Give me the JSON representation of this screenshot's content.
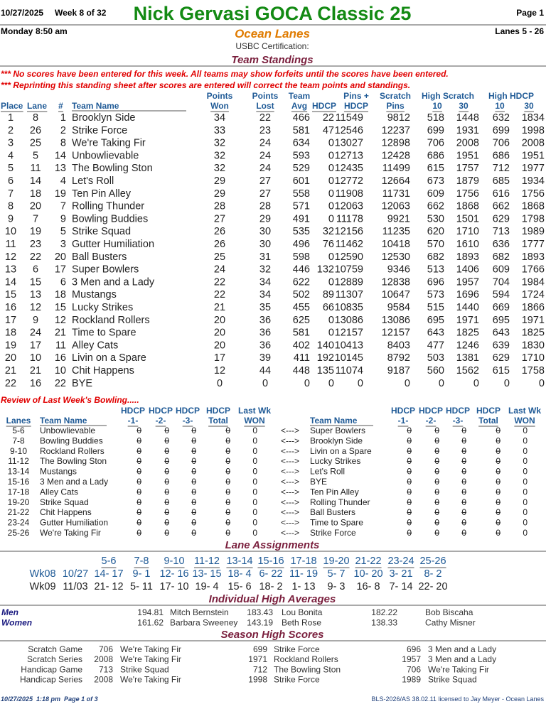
{
  "header": {
    "date": "10/27/2025",
    "week": "Week 8 of 32",
    "title": "Nick Gervasi GOCA Classic 25",
    "page": "Page 1",
    "day": "Monday",
    "time": "8:50 am",
    "center": "Ocean Lanes",
    "lanes": "Lanes 5 - 26",
    "certification": "USBC Certification:"
  },
  "standings": {
    "title": "Team Standings",
    "notes": [
      "*** No scores have been entered for this week. All teams may show forfeits until the scores have been entered.",
      "*** Reprinting this standing sheet after scores are entered will correct the team points and standings."
    ],
    "header_top": [
      "Points",
      "Points",
      "Team",
      "Pins +",
      "Scratch",
      "High Scratch",
      "High HDCP"
    ],
    "header": [
      "Place",
      "Lane",
      "#",
      "Team Name",
      "Won",
      "Lost",
      "Avg",
      "HDCP",
      "HDCP",
      "Pins",
      "10",
      "30",
      "10",
      "30"
    ],
    "rows": [
      [
        1,
        8,
        1,
        "Brooklyn Side",
        34,
        22,
        466,
        22,
        11549,
        9812,
        518,
        1448,
        632,
        1834
      ],
      [
        2,
        26,
        2,
        "Strike Force",
        33,
        23,
        581,
        47,
        12546,
        12237,
        699,
        1931,
        699,
        1998
      ],
      [
        3,
        25,
        8,
        "We're Taking Fir",
        32,
        24,
        634,
        0,
        13027,
        12898,
        706,
        2008,
        706,
        2008
      ],
      [
        4,
        5,
        14,
        "Unbowlievable",
        32,
        24,
        593,
        0,
        12713,
        12428,
        686,
        1951,
        686,
        1951
      ],
      [
        5,
        11,
        13,
        "The Bowling Ston",
        32,
        24,
        529,
        0,
        12435,
        11499,
        615,
        1757,
        712,
        1977
      ],
      [
        6,
        14,
        4,
        "Let's Roll",
        29,
        27,
        601,
        0,
        12772,
        12664,
        673,
        1879,
        685,
        1934
      ],
      [
        7,
        18,
        19,
        "Ten Pin Alley",
        29,
        27,
        558,
        0,
        11908,
        11731,
        609,
        1756,
        616,
        1756
      ],
      [
        8,
        20,
        7,
        "Rolling Thunder",
        28,
        28,
        571,
        0,
        12063,
        12063,
        662,
        1868,
        662,
        1868
      ],
      [
        9,
        7,
        9,
        "Bowling Buddies",
        27,
        29,
        491,
        0,
        11178,
        9921,
        530,
        1501,
        629,
        1798
      ],
      [
        10,
        19,
        5,
        "Strike Squad",
        26,
        30,
        535,
        32,
        12156,
        11235,
        620,
        1710,
        713,
        1989
      ],
      [
        11,
        23,
        3,
        "Gutter Humiliation",
        26,
        30,
        496,
        76,
        11462,
        10418,
        570,
        1610,
        636,
        1777
      ],
      [
        12,
        22,
        20,
        "Ball Busters",
        25,
        31,
        598,
        0,
        12590,
        12530,
        682,
        1893,
        682,
        1893
      ],
      [
        13,
        6,
        17,
        "Super Bowlers",
        24,
        32,
        446,
        132,
        10759,
        9346,
        513,
        1406,
        609,
        1766
      ],
      [
        14,
        15,
        6,
        "3 Men and a Lady",
        22,
        34,
        622,
        0,
        12889,
        12838,
        696,
        1957,
        704,
        1984
      ],
      [
        15,
        13,
        18,
        "Mustangs",
        22,
        34,
        502,
        89,
        11307,
        10647,
        573,
        1696,
        594,
        1724
      ],
      [
        16,
        12,
        15,
        "Lucky Strikes",
        21,
        35,
        455,
        66,
        10835,
        9584,
        515,
        1440,
        669,
        1866
      ],
      [
        17,
        9,
        12,
        "Rockland Rollers",
        20,
        36,
        625,
        0,
        13086,
        13086,
        695,
        1971,
        695,
        1971
      ],
      [
        18,
        24,
        21,
        "Time to Spare",
        20,
        36,
        581,
        0,
        12157,
        12157,
        643,
        1825,
        643,
        1825
      ],
      [
        19,
        17,
        11,
        "Alley Cats",
        20,
        36,
        402,
        140,
        10413,
        8403,
        477,
        1246,
        639,
        1830
      ],
      [
        20,
        10,
        16,
        "Livin on a Spare",
        17,
        39,
        411,
        192,
        10145,
        8792,
        503,
        1381,
        629,
        1710
      ],
      [
        21,
        21,
        10,
        "Chit Happens",
        12,
        44,
        448,
        135,
        11074,
        9187,
        560,
        1562,
        615,
        1758
      ],
      [
        22,
        16,
        22,
        "BYE",
        0,
        0,
        0,
        0,
        0,
        0,
        0,
        0,
        0,
        0
      ]
    ]
  },
  "review": {
    "title": "Review of Last Week's Bowling.....",
    "header_top": [
      "HDCP",
      "HDCP",
      "HDCP",
      "HDCP",
      "Last Wk",
      "HDCP",
      "HDCP",
      "HDCP",
      "HDCP",
      "Last Wk"
    ],
    "header": [
      "Lanes",
      "Team Name",
      "-1-",
      "-2-",
      "-3-",
      "Total",
      "WON",
      "Team Name",
      "-1-",
      "-2-",
      "-3-",
      "Total",
      "WON"
    ],
    "arrow": "<--->",
    "rows": [
      [
        "5-6",
        "Unbowlievable",
        0,
        0,
        0,
        0,
        0,
        "Super Bowlers",
        0,
        0,
        0,
        0,
        0
      ],
      [
        "7-8",
        "Bowling Buddies",
        0,
        0,
        0,
        0,
        0,
        "Brooklyn Side",
        0,
        0,
        0,
        0,
        0
      ],
      [
        "9-10",
        "Rockland Rollers",
        0,
        0,
        0,
        0,
        0,
        "Livin on a Spare",
        0,
        0,
        0,
        0,
        0
      ],
      [
        "11-12",
        "The Bowling Ston",
        0,
        0,
        0,
        0,
        0,
        "Lucky Strikes",
        0,
        0,
        0,
        0,
        0
      ],
      [
        "13-14",
        "Mustangs",
        0,
        0,
        0,
        0,
        0,
        "Let's Roll",
        0,
        0,
        0,
        0,
        0
      ],
      [
        "15-16",
        "3 Men and a Lady",
        0,
        0,
        0,
        0,
        0,
        "BYE",
        0,
        0,
        0,
        0,
        0
      ],
      [
        "17-18",
        "Alley Cats",
        0,
        0,
        0,
        0,
        0,
        "Ten Pin Alley",
        0,
        0,
        0,
        0,
        0
      ],
      [
        "19-20",
        "Strike Squad",
        0,
        0,
        0,
        0,
        0,
        "Rolling Thunder",
        0,
        0,
        0,
        0,
        0
      ],
      [
        "21-22",
        "Chit Happens",
        0,
        0,
        0,
        0,
        0,
        "Ball Busters",
        0,
        0,
        0,
        0,
        0
      ],
      [
        "23-24",
        "Gutter Humiliation",
        0,
        0,
        0,
        0,
        0,
        "Time to Spare",
        0,
        0,
        0,
        0,
        0
      ],
      [
        "25-26",
        "We're Taking Fir",
        0,
        0,
        0,
        0,
        0,
        "Strike Force",
        0,
        0,
        0,
        0,
        0
      ]
    ]
  },
  "lane_assignments": {
    "title": "Lane Assignments",
    "lanes": [
      "5-6",
      "7-8",
      "9-10",
      "11-12",
      "13-14",
      "15-16",
      "17-18",
      "19-20",
      "21-22",
      "23-24",
      "25-26"
    ],
    "rows": [
      [
        "Wk08",
        "10/27",
        "14- 17",
        "9- 1",
        "12- 16",
        "13- 15",
        "18- 4",
        "6- 22",
        "11- 19",
        "5- 7",
        "10- 20",
        "3- 21",
        "8- 2"
      ],
      [
        "Wk09",
        "11/03",
        "21- 12",
        "5- 11",
        "17- 10",
        "19- 4",
        "15- 6",
        "18- 2",
        "1- 13",
        "9- 3",
        "16- 8",
        "7- 14",
        "22- 20"
      ]
    ]
  },
  "high_averages": {
    "title": "Individual High Averages",
    "rows": [
      {
        "label": "Men",
        "entries": [
          [
            194.81,
            "Mitch Bernstein"
          ],
          [
            183.43,
            "Lou Bonita"
          ],
          [
            182.22,
            "Bob Biscaha"
          ]
        ]
      },
      {
        "label": "Women",
        "entries": [
          [
            161.62,
            "Barbara Sweeney"
          ],
          [
            143.19,
            "Beth Rose"
          ],
          [
            138.33,
            "Cathy Misner"
          ]
        ]
      }
    ]
  },
  "season_high": {
    "title": "Season High Scores",
    "rows": [
      {
        "label": "Scratch Game",
        "entries": [
          [
            706,
            "We're Taking Fir"
          ],
          [
            699,
            "Strike Force"
          ],
          [
            696,
            "3 Men and a Lady"
          ]
        ]
      },
      {
        "label": "Scratch Series",
        "entries": [
          [
            2008,
            "We're Taking Fir"
          ],
          [
            1971,
            "Rockland Rollers"
          ],
          [
            1957,
            "3 Men and a Lady"
          ]
        ]
      },
      {
        "label": "Handicap Game",
        "entries": [
          [
            713,
            "Strike Squad"
          ],
          [
            712,
            "The Bowling Ston"
          ],
          [
            706,
            "We're Taking Fir"
          ]
        ]
      },
      {
        "label": "Handicap Series",
        "entries": [
          [
            2008,
            "We're Taking Fir"
          ],
          [
            1998,
            "Strike Force"
          ],
          [
            1989,
            "Strike Squad"
          ]
        ]
      }
    ]
  },
  "footer": {
    "printed": "10/27/2025  1:18 pm  Page 1 of 3",
    "license": "BLS-2026/AS 38.02.11 licensed to Jay Meyer - Ocean Lanes"
  }
}
